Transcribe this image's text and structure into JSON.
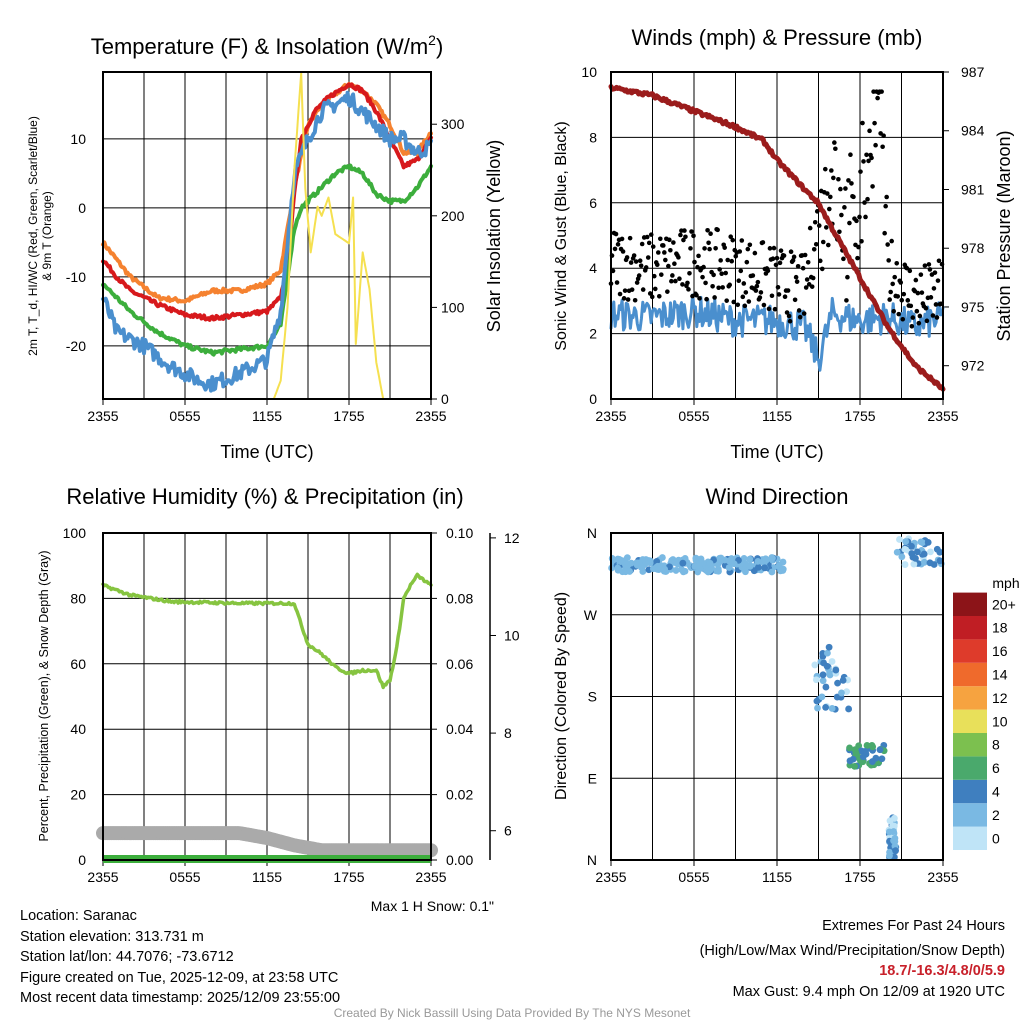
{
  "chart_data": [
    {
      "type": "line",
      "title": "Temperature (F) & Insolation (W/m",
      "title_sup": "2",
      "title_end": ")",
      "xlabel": "Time (UTC)",
      "ylabel": "2m T, T_d, HI/WC (Red, Green, Scarlet/Blue)",
      "ylabel2": "& 9m T (Orange)",
      "y2label": "Solar Insolation (Yellow)",
      "ylim": [
        -27.7,
        19.7
      ],
      "y2lim": [
        0,
        357
      ],
      "xticks": [
        "2355",
        "0555",
        "1155",
        "1755",
        "2355"
      ],
      "yticks": [
        "-20",
        "-10",
        "0",
        "10"
      ],
      "y2ticks": [
        "0",
        "100",
        "200",
        "300"
      ],
      "series": [
        {
          "name": "9m T",
          "color": "#f58230",
          "points": [
            [
              0,
              -5
            ],
            [
              2,
              -10
            ],
            [
              4,
              -13
            ],
            [
              6,
              -13.5
            ],
            [
              8,
              -12
            ],
            [
              10,
              -12
            ],
            [
              12,
              -11
            ],
            [
              13,
              -9
            ],
            [
              14,
              3
            ],
            [
              15,
              12
            ],
            [
              16,
              15
            ],
            [
              18,
              18
            ],
            [
              19,
              17
            ],
            [
              20,
              15
            ],
            [
              21,
              12
            ],
            [
              22,
              8
            ],
            [
              23,
              8
            ],
            [
              24,
              11
            ]
          ]
        },
        {
          "name": "2m T",
          "color": "#d7191c",
          "points": [
            [
              0,
              -7.5
            ],
            [
              1,
              -10
            ],
            [
              2,
              -12
            ],
            [
              4,
              -14
            ],
            [
              6,
              -15.5
            ],
            [
              8,
              -16
            ],
            [
              10,
              -15.5
            ],
            [
              12,
              -15
            ],
            [
              13,
              -13
            ],
            [
              13.5,
              -8
            ],
            [
              14,
              2
            ],
            [
              14.5,
              10
            ],
            [
              15.5,
              14
            ],
            [
              16.5,
              16
            ],
            [
              18,
              18
            ],
            [
              19,
              17
            ],
            [
              20,
              14
            ],
            [
              21,
              10
            ],
            [
              22,
              6
            ],
            [
              23,
              7
            ],
            [
              24,
              10
            ]
          ]
        },
        {
          "name": "Td",
          "color": "#3cae3c",
          "points": [
            [
              0,
              -11
            ],
            [
              2,
              -15
            ],
            [
              4,
              -18
            ],
            [
              6,
              -20
            ],
            [
              8,
              -21
            ],
            [
              10,
              -20.5
            ],
            [
              12,
              -20
            ],
            [
              13,
              -17
            ],
            [
              14,
              -3
            ],
            [
              14.5,
              0
            ],
            [
              15.5,
              2
            ],
            [
              17,
              5
            ],
            [
              18,
              6
            ],
            [
              19,
              5
            ],
            [
              20,
              2
            ],
            [
              21,
              1
            ],
            [
              22,
              1
            ],
            [
              23,
              3
            ],
            [
              24,
              6
            ]
          ]
        },
        {
          "name": "HI/WC",
          "color": "#4a8fce",
          "points": [
            [
              0,
              -13
            ],
            [
              1,
              -18
            ],
            [
              3,
              -20
            ],
            [
              5,
              -23
            ],
            [
              7,
              -25
            ],
            [
              8,
              -25.5
            ],
            [
              10,
              -24
            ],
            [
              12,
              -22
            ],
            [
              13,
              -15
            ],
            [
              14,
              5
            ],
            [
              15,
              10
            ],
            [
              16,
              14
            ],
            [
              17,
              15
            ],
            [
              18,
              16
            ],
            [
              19,
              14
            ],
            [
              20,
              12
            ],
            [
              21,
              10
            ],
            [
              22,
              10
            ],
            [
              23,
              8
            ],
            [
              24,
              9
            ]
          ]
        },
        {
          "name": "Solar Insolation",
          "color": "#f5e050",
          "axis": "y2",
          "points": [
            [
              0,
              0
            ],
            [
              12.5,
              0
            ],
            [
              13,
              20
            ],
            [
              13.5,
              100
            ],
            [
              14,
              250
            ],
            [
              14.5,
              356
            ],
            [
              14.8,
              230
            ],
            [
              15.2,
              160
            ],
            [
              15.7,
              210
            ],
            [
              16,
              200
            ],
            [
              16.5,
              220
            ],
            [
              17,
              180
            ],
            [
              18,
              170
            ],
            [
              18.3,
              220
            ],
            [
              18.5,
              60
            ],
            [
              19,
              160
            ],
            [
              19.5,
              120
            ],
            [
              20,
              40
            ],
            [
              20.5,
              0
            ],
            [
              24,
              0
            ]
          ]
        }
      ]
    },
    {
      "type": "line",
      "title": "Winds (mph) & Pressure (mb)",
      "xlabel": "Time (UTC)",
      "ylabel": "Sonic Wind & Gust (Blue, Black)",
      "y2label": "Station Pressure (Maroon)",
      "ylim": [
        0,
        10
      ],
      "y2lim": [
        970.3,
        987
      ],
      "xticks": [
        "2355",
        "0555",
        "1155",
        "1755",
        "2355"
      ],
      "yticks": [
        "0",
        "2",
        "4",
        "6",
        "8",
        "10"
      ],
      "y2ticks": [
        "972",
        "975",
        "978",
        "981",
        "984",
        "987"
      ],
      "series": [
        {
          "name": "Sonic Wind",
          "color": "#4a8fce",
          "points": [
            [
              0,
              2.6
            ],
            [
              3,
              2.5
            ],
            [
              6,
              2.7
            ],
            [
              9,
              2.4
            ],
            [
              12,
              2.4
            ],
            [
              14,
              2.2
            ],
            [
              15,
              1.2
            ],
            [
              16,
              2.6
            ],
            [
              18,
              2.4
            ],
            [
              20,
              2.5
            ],
            [
              22,
              2.2
            ],
            [
              24,
              2.5
            ]
          ]
        },
        {
          "name": "Gust",
          "color": "#000000",
          "style": "dots",
          "points": [
            [
              0,
              4.2
            ],
            [
              3,
              4
            ],
            [
              6,
              4.2
            ],
            [
              9,
              4
            ],
            [
              12,
              3.6
            ],
            [
              14,
              3.3
            ],
            [
              15,
              5.5
            ],
            [
              16,
              7
            ],
            [
              17,
              5
            ],
            [
              18,
              6
            ],
            [
              19.4,
              9.4
            ],
            [
              20,
              4
            ],
            [
              22,
              3
            ],
            [
              24,
              3.2
            ]
          ]
        },
        {
          "name": "Pressure",
          "color": "#9b1c1c",
          "axis": "y2",
          "points": [
            [
              0,
              986.2
            ],
            [
              3,
              985.8
            ],
            [
              6,
              985
            ],
            [
              9,
              984.2
            ],
            [
              11,
              983.5
            ],
            [
              12,
              982.5
            ],
            [
              14,
              981
            ],
            [
              15,
              980.3
            ],
            [
              16,
              979
            ],
            [
              18,
              976.5
            ],
            [
              20,
              974
            ],
            [
              22,
              972
            ],
            [
              24,
              970.8
            ]
          ]
        }
      ]
    },
    {
      "type": "line",
      "title": "Relative Humidity (%) & Precipitation (in)",
      "ylabel": "Percent, Precipitation (Green), & Snow Depth (Gray)",
      "ylim": [
        0,
        100
      ],
      "y2lim": [
        0,
        0.1
      ],
      "y3lim": [
        5.4,
        12.1
      ],
      "xticks": [
        "2355",
        "0555",
        "1155",
        "1755",
        "2355"
      ],
      "yticks": [
        "0",
        "20",
        "40",
        "60",
        "80",
        "100"
      ],
      "y2ticks": [
        "0.00",
        "0.02",
        "0.04",
        "0.06",
        "0.08",
        "0.10"
      ],
      "y3ticks": [
        "6",
        "8",
        "10",
        "12"
      ],
      "note": "Max 1 H Snow: 0.1\"",
      "series": [
        {
          "name": "RH",
          "color": "#86c440",
          "points": [
            [
              0,
              84
            ],
            [
              2,
              81
            ],
            [
              5,
              79
            ],
            [
              10,
              78.5
            ],
            [
              14,
              78.5
            ],
            [
              14.5,
              72
            ],
            [
              15,
              66
            ],
            [
              16,
              63
            ],
            [
              17,
              59
            ],
            [
              18,
              57
            ],
            [
              19,
              58
            ],
            [
              20,
              58
            ],
            [
              20.5,
              53
            ],
            [
              21,
              55
            ],
            [
              21.5,
              65
            ],
            [
              22,
              80
            ],
            [
              22.5,
              84
            ],
            [
              23,
              87
            ],
            [
              24,
              84
            ]
          ]
        },
        {
          "name": "Snow Depth",
          "color": "#aaaaaa",
          "axis": "y3",
          "points": [
            [
              0,
              5.95
            ],
            [
              10,
              5.95
            ],
            [
              12,
              5.85
            ],
            [
              14,
              5.7
            ],
            [
              16,
              5.6
            ],
            [
              24,
              5.6
            ]
          ]
        },
        {
          "name": "Precipitation",
          "color": "#3cae3c",
          "axis": "y2",
          "points": [
            [
              0,
              0
            ],
            [
              24,
              0
            ]
          ]
        }
      ]
    },
    {
      "type": "scatter",
      "title": "Wind Direction",
      "ylabel": "Direction (Colored By Speed)",
      "ylim": [
        0,
        360
      ],
      "xticks": [
        "2355",
        "0555",
        "1155",
        "1755",
        "2355"
      ],
      "yticks": [
        "N",
        "E",
        "S",
        "W",
        "N"
      ],
      "legend": {
        "title": "mph",
        "labels": [
          "0",
          "2",
          "4",
          "6",
          "8",
          "10",
          "12",
          "14",
          "16",
          "18",
          "20+"
        ],
        "colors": [
          "#bfe4f7",
          "#7ab9e3",
          "#3f7fbf",
          "#4aa96c",
          "#7cc04f",
          "#e8e05a",
          "#f6a340",
          "#ef6a2c",
          "#de3b2b",
          "#c01e24",
          "#8c1418"
        ]
      },
      "clusters": [
        [
          0,
          12.5,
          325,
          8
        ],
        [
          14.6,
          17.2,
          200,
          35
        ],
        [
          17.2,
          19.8,
          115,
          12
        ],
        [
          20.1,
          20.6,
          25,
          25
        ],
        [
          20.6,
          24,
          340,
          15
        ]
      ]
    }
  ],
  "info": {
    "location": "Location: Saranac",
    "elevation": "Station elevation: 313.731 m",
    "latlon": "Station lat/lon: 44.7076; -73.6712",
    "created": "Figure created on Tue, 2025-12-09, at 23:58 UTC",
    "recent": "Most recent data timestamp: 2025/12/09 23:55:00",
    "extremes_title": "Extremes For Past 24 Hours",
    "extremes_sub": "(High/Low/Max Wind/Precipitation/Snow Depth)",
    "extremes_values": "18.7/-16.3/4.8/0/5.9",
    "max_gust": "Max Gust: 9.4 mph On 12/09 at 1920 UTC",
    "credit": "Created By Nick Bassill Using Data Provided By The NYS Mesonet"
  }
}
